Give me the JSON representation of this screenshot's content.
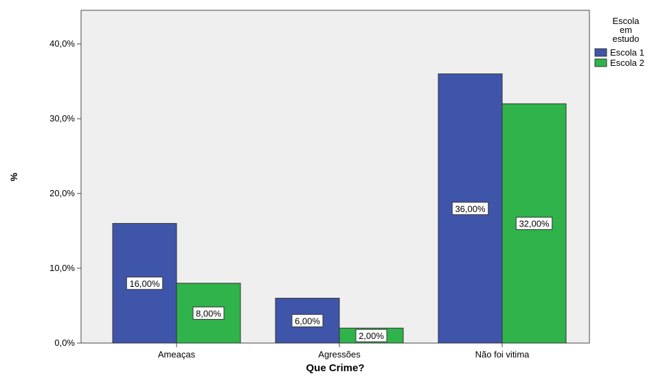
{
  "chart_data": {
    "type": "bar",
    "title": "",
    "xlabel": "Que Crime?",
    "ylabel": "%",
    "categories": [
      "Ameaças",
      "Agressões",
      "Não foi vitima"
    ],
    "series": [
      {
        "name": "Escola 1",
        "values": [
          16,
          6,
          36
        ],
        "labels": [
          "16,00%",
          "6,00%",
          "36,00%"
        ]
      },
      {
        "name": "Escola 2",
        "values": [
          8,
          2,
          32
        ],
        "labels": [
          "8,00%",
          "2,00%",
          "32,00%"
        ]
      }
    ],
    "ylim": [
      0,
      44.5
    ],
    "yticks": [
      0,
      10,
      20,
      30,
      40
    ],
    "ytick_labels": [
      "0,0%",
      "10,0%",
      "20,0%",
      "30,0%",
      "40,0%"
    ],
    "legend_title_lines": [
      "Escola",
      "em",
      "estudo"
    ],
    "legend_position": "right",
    "grid": false,
    "colors": {
      "Escola 1": "#3f55a9",
      "Escola 2": "#2fb34a",
      "plot_background": "#efefef"
    }
  }
}
